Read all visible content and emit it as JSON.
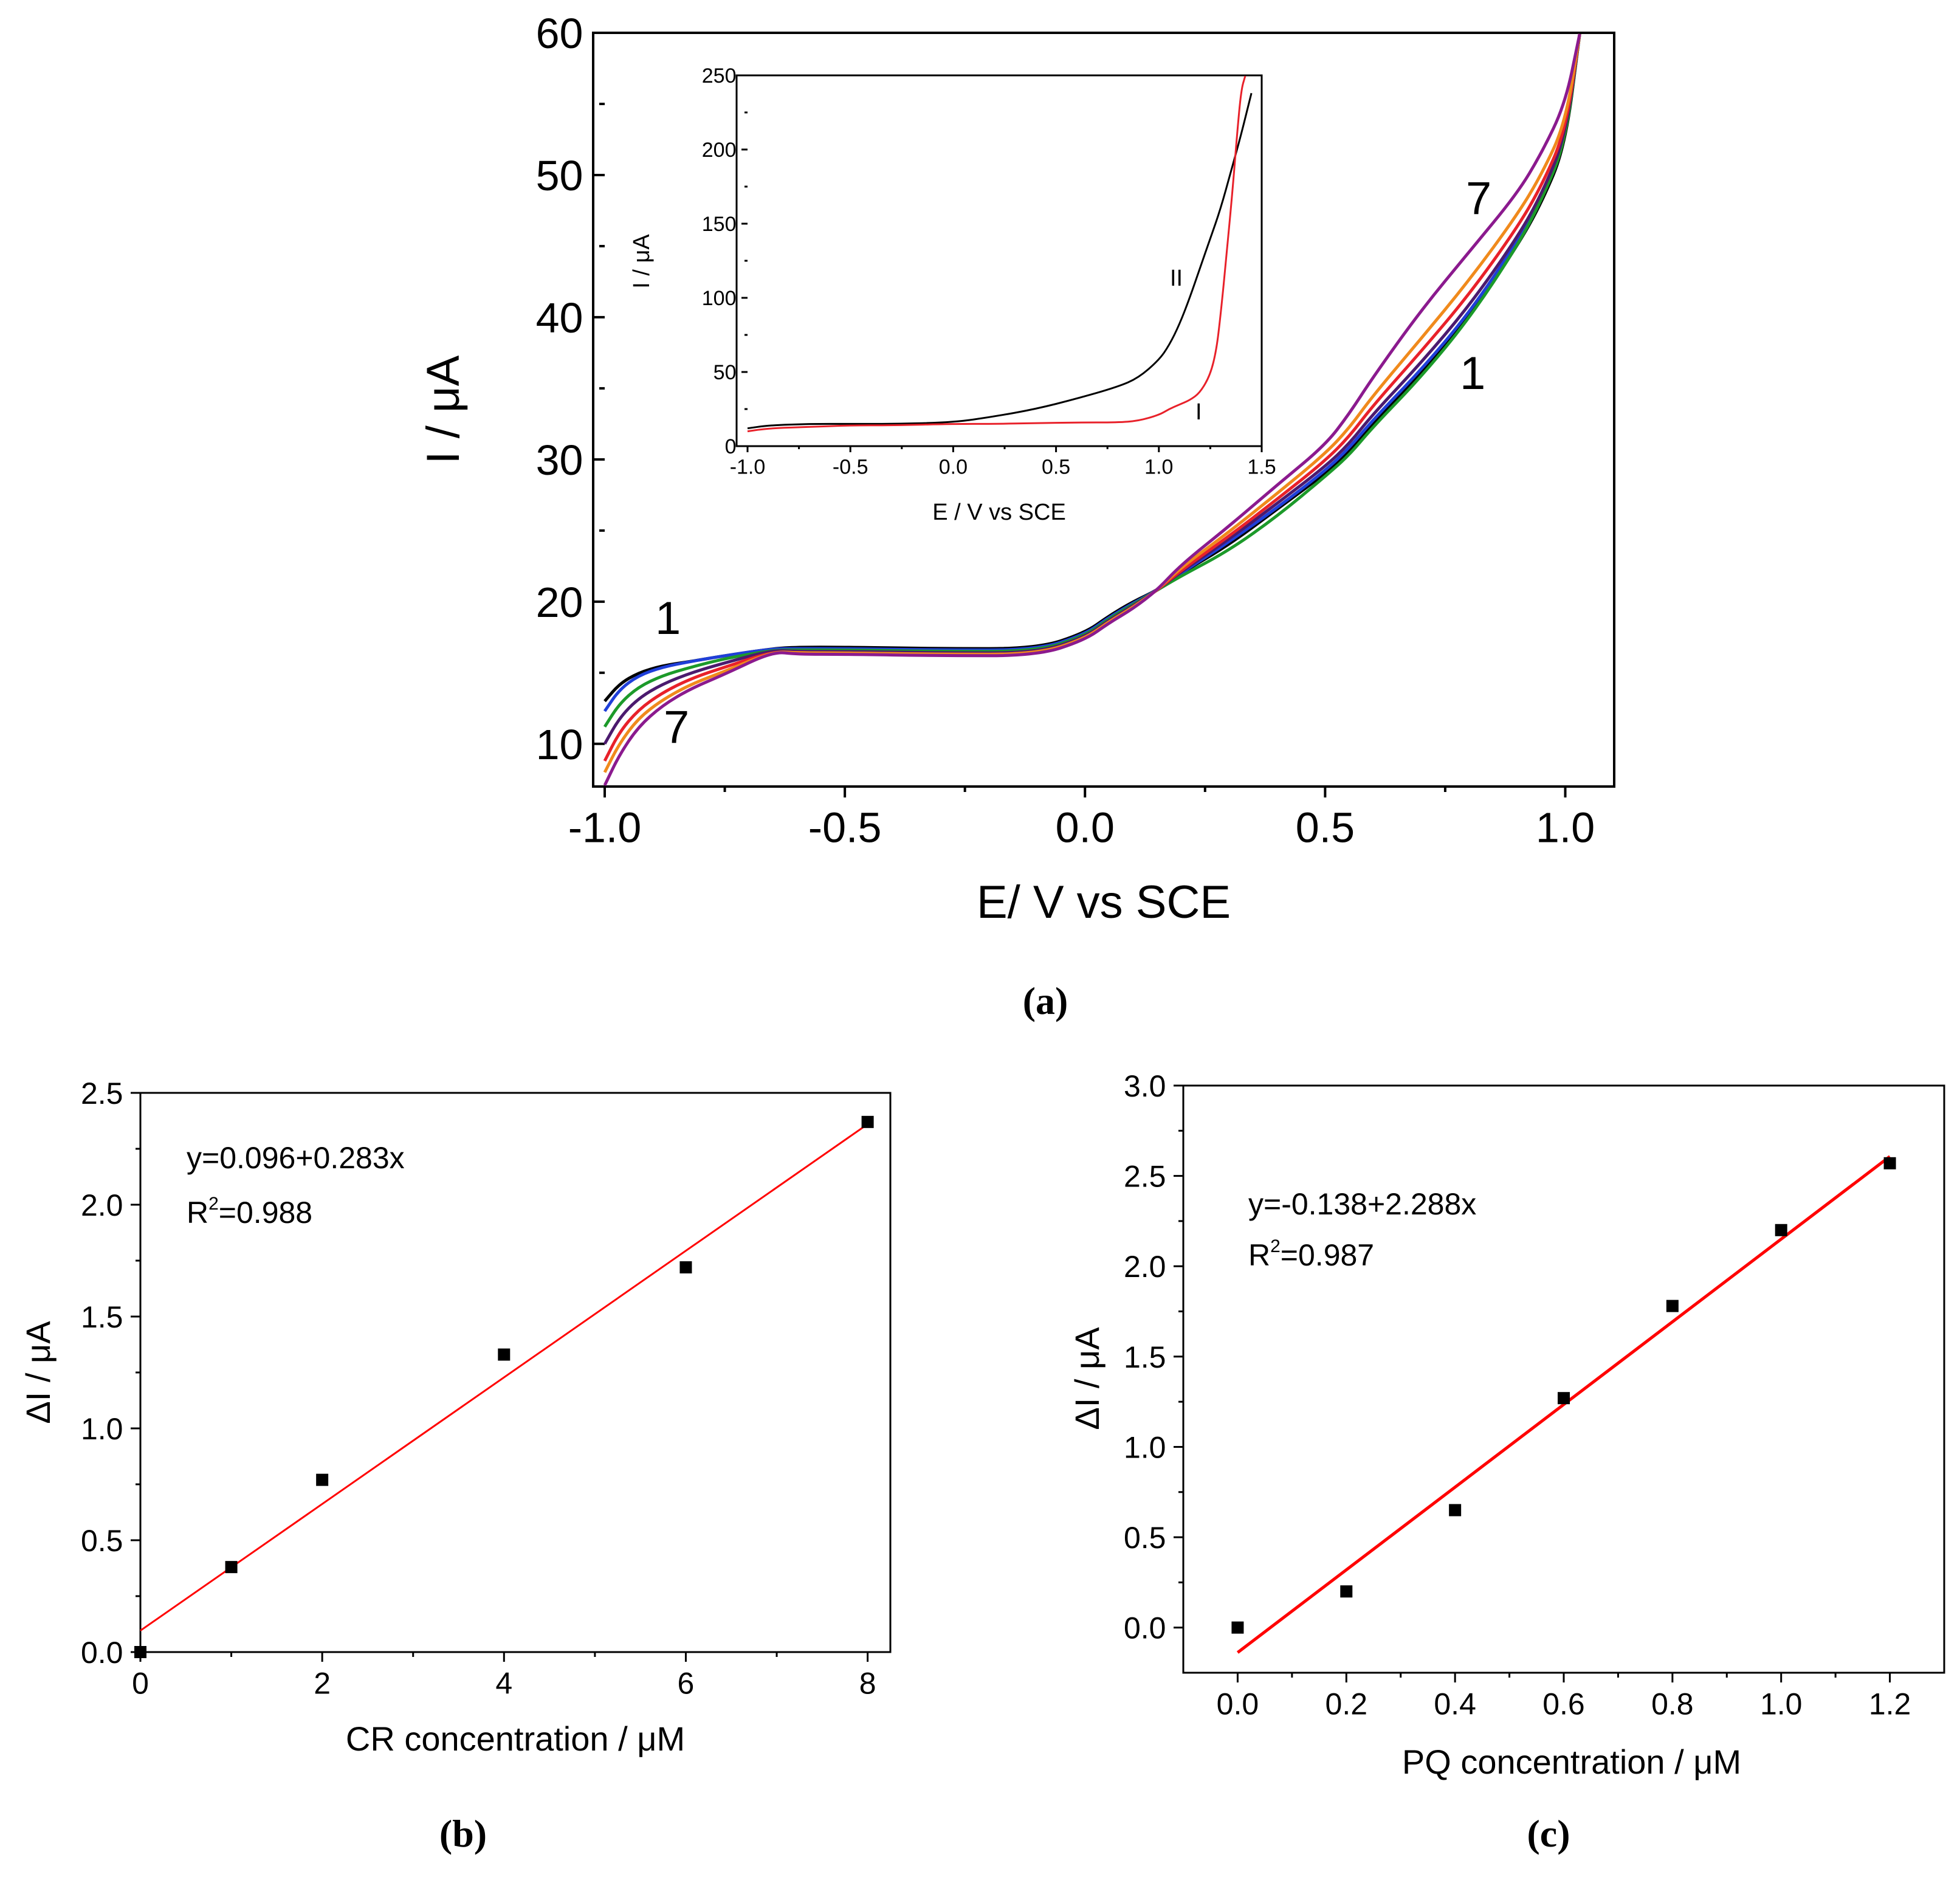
{
  "chart_data": [
    {
      "panel": "a",
      "caption": "(a)",
      "type": "line",
      "xlabel": "E/ V vs SCE",
      "ylabel": "I / μA",
      "xlim": [
        -1.0,
        1.05
      ],
      "ylim": [
        7,
        60
      ],
      "xticks": [
        -1.0,
        -0.5,
        0.0,
        0.5,
        1.0
      ],
      "xtick_labels": [
        "-1.0",
        "-0.5",
        "0.0",
        "0.5",
        "1.0"
      ],
      "yticks": [
        10,
        20,
        30,
        40,
        50,
        60
      ],
      "ytick_labels": [
        "10",
        "20",
        "30",
        "40",
        "50",
        "60"
      ],
      "grid": false,
      "annotations": [
        "1",
        "7",
        "7",
        "1"
      ],
      "series": [
        {
          "color": "#000000",
          "x": [
            -1.0,
            -0.97,
            -0.93,
            -0.88,
            -0.82,
            -0.75,
            -0.65,
            -0.6,
            -0.5,
            -0.3,
            -0.1,
            0.0,
            0.05,
            0.1,
            0.15,
            0.2,
            0.3,
            0.4,
            0.5,
            0.55,
            0.6,
            0.7,
            0.8,
            0.9,
            0.95,
            1.0,
            1.03
          ],
          "y": [
            13.0,
            14.2,
            15.0,
            15.5,
            15.8,
            16.2,
            16.7,
            16.8,
            16.8,
            16.7,
            16.7,
            17.8,
            19.0,
            20.0,
            20.8,
            22.0,
            24.0,
            26.5,
            29.0,
            30.5,
            32.5,
            36.0,
            40.0,
            45.0,
            48.0,
            52.0,
            60.0
          ]
        },
        {
          "color": "#1f3fd9",
          "x": [
            -1.0,
            -0.97,
            -0.93,
            -0.88,
            -0.82,
            -0.75,
            -0.65,
            -0.6,
            -0.5,
            -0.3,
            -0.1,
            0.0,
            0.05,
            0.1,
            0.15,
            0.2,
            0.3,
            0.4,
            0.5,
            0.55,
            0.6,
            0.7,
            0.8,
            0.9,
            0.95,
            1.0,
            1.03
          ],
          "y": [
            12.3,
            13.8,
            14.8,
            15.4,
            15.8,
            16.2,
            16.7,
            16.7,
            16.7,
            16.6,
            16.6,
            17.7,
            18.9,
            19.9,
            20.8,
            22.0,
            24.2,
            26.6,
            29.2,
            30.8,
            32.8,
            36.3,
            40.3,
            45.3,
            48.3,
            52.3,
            60.0
          ]
        },
        {
          "color": "#1c9a2a",
          "x": [
            -1.0,
            -0.97,
            -0.93,
            -0.88,
            -0.82,
            -0.75,
            -0.65,
            -0.6,
            -0.5,
            -0.3,
            -0.1,
            0.0,
            0.05,
            0.1,
            0.15,
            0.2,
            0.3,
            0.4,
            0.5,
            0.55,
            0.6,
            0.7,
            0.8,
            0.9,
            0.95,
            1.0,
            1.03
          ],
          "y": [
            11.2,
            12.8,
            14.0,
            14.8,
            15.4,
            16.0,
            16.6,
            16.6,
            16.6,
            16.5,
            16.5,
            17.6,
            18.8,
            19.8,
            20.8,
            21.8,
            23.6,
            26.0,
            28.8,
            30.3,
            32.3,
            35.8,
            39.9,
            45.0,
            48.2,
            52.2,
            60.0
          ]
        },
        {
          "color": "#4b1a6e",
          "x": [
            -1.0,
            -0.97,
            -0.93,
            -0.88,
            -0.82,
            -0.75,
            -0.65,
            -0.6,
            -0.5,
            -0.3,
            -0.1,
            0.0,
            0.05,
            0.1,
            0.15,
            0.2,
            0.3,
            0.4,
            0.5,
            0.55,
            0.6,
            0.7,
            0.8,
            0.9,
            0.95,
            1.0,
            1.03
          ],
          "y": [
            10.0,
            11.8,
            13.2,
            14.2,
            15.0,
            15.7,
            16.6,
            16.5,
            16.5,
            16.4,
            16.4,
            17.5,
            18.7,
            19.7,
            20.8,
            22.1,
            24.4,
            26.9,
            29.5,
            31.1,
            33.2,
            36.8,
            40.8,
            45.6,
            48.6,
            52.6,
            60.0
          ]
        },
        {
          "color": "#e8212a",
          "x": [
            -1.0,
            -0.97,
            -0.93,
            -0.88,
            -0.82,
            -0.75,
            -0.65,
            -0.6,
            -0.5,
            -0.3,
            -0.1,
            0.0,
            0.05,
            0.1,
            0.15,
            0.2,
            0.3,
            0.4,
            0.5,
            0.55,
            0.6,
            0.7,
            0.8,
            0.9,
            0.95,
            1.0,
            1.03
          ],
          "y": [
            8.8,
            10.8,
            12.4,
            13.6,
            14.6,
            15.4,
            16.5,
            16.4,
            16.4,
            16.3,
            16.3,
            17.4,
            18.6,
            19.6,
            20.8,
            22.2,
            24.6,
            27.2,
            29.9,
            31.6,
            33.8,
            37.6,
            41.6,
            46.3,
            49.2,
            53.0,
            60.0
          ]
        },
        {
          "color": "#f08a1c",
          "x": [
            -1.0,
            -0.97,
            -0.93,
            -0.88,
            -0.82,
            -0.75,
            -0.65,
            -0.6,
            -0.5,
            -0.3,
            -0.1,
            0.0,
            0.05,
            0.1,
            0.15,
            0.2,
            0.3,
            0.4,
            0.5,
            0.55,
            0.6,
            0.7,
            0.8,
            0.9,
            0.95,
            1.0,
            1.03
          ],
          "y": [
            8.0,
            10.0,
            11.8,
            13.1,
            14.2,
            15.1,
            16.5,
            16.4,
            16.4,
            16.3,
            16.3,
            17.4,
            18.6,
            19.6,
            20.8,
            22.4,
            24.9,
            27.6,
            30.4,
            32.2,
            34.5,
            38.5,
            42.6,
            47.2,
            50.0,
            53.6,
            60.0
          ]
        },
        {
          "color": "#8b1a8e",
          "x": [
            -1.0,
            -0.97,
            -0.93,
            -0.88,
            -0.82,
            -0.75,
            -0.65,
            -0.6,
            -0.5,
            -0.3,
            -0.1,
            0.0,
            0.05,
            0.1,
            0.15,
            0.2,
            0.3,
            0.4,
            0.5,
            0.55,
            0.6,
            0.7,
            0.8,
            0.9,
            0.95,
            1.0,
            1.03
          ],
          "y": [
            7.0,
            9.2,
            11.2,
            12.7,
            13.9,
            14.9,
            16.5,
            16.3,
            16.3,
            16.2,
            16.2,
            17.3,
            18.5,
            19.5,
            20.8,
            22.6,
            25.3,
            28.2,
            31.0,
            33.2,
            35.8,
            40.5,
            44.6,
            48.7,
            51.5,
            55.0,
            60.0
          ]
        }
      ],
      "inset": {
        "type": "line",
        "xlabel": "E / V vs SCE",
        "ylabel": "I / μA",
        "xlim": [
          -1.0,
          1.5
        ],
        "ylim": [
          0,
          250
        ],
        "xticks": [
          -1.0,
          -0.5,
          0.0,
          0.5,
          1.0,
          1.5
        ],
        "xtick_labels": [
          "-1.0",
          "-0.5",
          "0.0",
          "0.5",
          "1.0",
          "1.5"
        ],
        "yticks": [
          0,
          50,
          100,
          150,
          200,
          250
        ],
        "ytick_labels": [
          "0",
          "50",
          "100",
          "150",
          "200",
          "250"
        ],
        "annotations": [
          "II",
          "I"
        ],
        "series": [
          {
            "color": "#000000",
            "x": [
              -1.0,
              -0.9,
              -0.7,
              -0.5,
              -0.3,
              0.0,
              0.2,
              0.4,
              0.6,
              0.8,
              0.9,
              1.0,
              1.05,
              1.1,
              1.15,
              1.2,
              1.25,
              1.3,
              1.35,
              1.4,
              1.45
            ],
            "y": [
              12,
              14,
              15,
              15,
              15,
              16,
              20,
              25,
              32,
              40,
              46,
              58,
              68,
              82,
              100,
              120,
              140,
              160,
              185,
              210,
              238
            ]
          },
          {
            "color": "#e8212a",
            "x": [
              -1.0,
              -0.9,
              -0.7,
              -0.5,
              -0.3,
              0.0,
              0.2,
              0.4,
              0.6,
              0.8,
              0.9,
              1.0,
              1.05,
              1.1,
              1.15,
              1.2,
              1.25,
              1.28,
              1.3,
              1.33,
              1.36,
              1.38,
              1.4,
              1.42
            ],
            "y": [
              10,
              12,
              13,
              14,
              14,
              15,
              15,
              15.5,
              16,
              16,
              17,
              21,
              25,
              28,
              31,
              36,
              48,
              65,
              88,
              130,
              175,
              210,
              240,
              250
            ]
          }
        ]
      }
    },
    {
      "panel": "b",
      "caption": "(b)",
      "type": "scatter",
      "xlabel": "CR concentration / μM",
      "ylabel": "ΔI / μA",
      "xlim": [
        0,
        8.25
      ],
      "ylim": [
        0,
        2.5
      ],
      "xticks": [
        0,
        2,
        4,
        6,
        8
      ],
      "xtick_labels": [
        "0",
        "2",
        "4",
        "6",
        "8"
      ],
      "yticks": [
        0.0,
        0.5,
        1.0,
        1.5,
        2.0,
        2.5
      ],
      "ytick_labels": [
        "0.0",
        "0.5",
        "1.0",
        "1.5",
        "2.0",
        "2.5"
      ],
      "equation": "y=0.096+0.283x",
      "r2": "R2=0.988",
      "x": [
        0,
        1,
        2,
        4,
        6,
        8
      ],
      "y": [
        0.0,
        0.38,
        0.77,
        1.33,
        1.72,
        2.37
      ],
      "fit": {
        "color": "#ff0000",
        "intercept": 0.096,
        "slope": 0.283,
        "x_range": [
          0,
          8
        ]
      }
    },
    {
      "panel": "c",
      "caption": "(c)",
      "type": "scatter",
      "xlabel": "PQ concentration / μM",
      "ylabel": "ΔI / μA",
      "xlim": [
        -0.1,
        1.3
      ],
      "ylim": [
        -0.25,
        3.0
      ],
      "xticks": [
        0.0,
        0.2,
        0.4,
        0.6,
        0.8,
        1.0,
        1.2
      ],
      "xtick_labels": [
        "0.0",
        "0.2",
        "0.4",
        "0.6",
        "0.8",
        "1.0",
        "1.2"
      ],
      "yticks": [
        0.0,
        0.5,
        1.0,
        1.5,
        2.0,
        2.5,
        3.0
      ],
      "ytick_labels": [
        "0.0",
        "0.5",
        "1.0",
        "1.5",
        "2.0",
        "2.5",
        "3.0"
      ],
      "equation": "y=-0.138+2.288x",
      "r2": "R2=0.987",
      "x": [
        0.0,
        0.2,
        0.4,
        0.6,
        0.8,
        1.0,
        1.2
      ],
      "y": [
        0.0,
        0.2,
        0.65,
        1.27,
        1.78,
        2.2,
        2.57
      ],
      "fit": {
        "color": "#ff0000",
        "intercept": -0.138,
        "slope": 2.288,
        "x_range": [
          0,
          1.2
        ]
      }
    }
  ]
}
